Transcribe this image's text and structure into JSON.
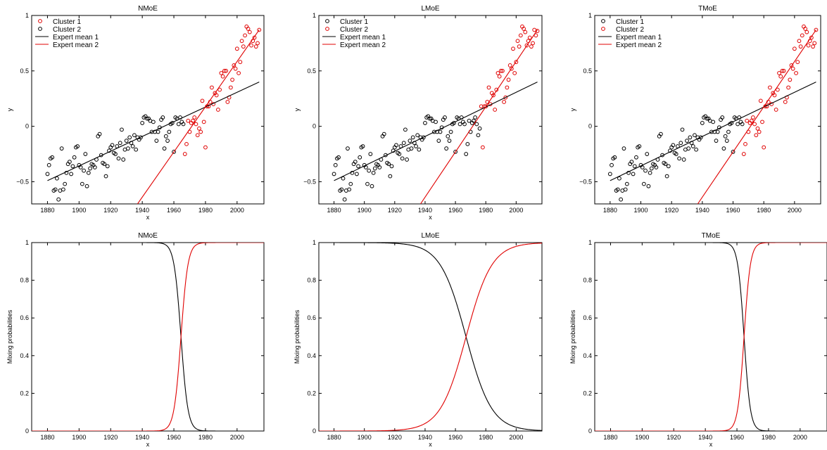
{
  "colors": {
    "cluster_black": "#000000",
    "cluster_red": "#e00000",
    "axes": "#000000",
    "background": "#ffffff"
  },
  "chart_data": [
    {
      "id": "top-left",
      "type": "scatter",
      "title": "NMoE",
      "xlabel": "x",
      "ylabel": "y",
      "xlim": [
        1870,
        2017
      ],
      "ylim": [
        -0.7,
        1.0
      ],
      "xticks": [
        1880,
        1900,
        1920,
        1940,
        1960,
        1980,
        2000
      ],
      "yticks": [
        -0.5,
        0,
        0.5,
        1
      ],
      "ytick_labels": [
        "−0.5",
        "0",
        "0.5",
        "1"
      ],
      "legend": {
        "placement": "top-left",
        "entries": [
          {
            "label": "Cluster 1",
            "kind": "marker",
            "color": "#e00000"
          },
          {
            "label": "Cluster 2",
            "kind": "marker",
            "color": "#000000"
          },
          {
            "label": "Expert mean 1",
            "kind": "line",
            "color": "#000000"
          },
          {
            "label": "Expert mean 2",
            "kind": "line",
            "color": "#e00000"
          }
        ]
      },
      "series": [
        {
          "kind": "points",
          "color": "#000000",
          "x_start": 1880,
          "x_end": 1966,
          "y": [
            -0.43,
            -0.35,
            -0.29,
            -0.28,
            -0.58,
            -0.57,
            -0.47,
            -0.66,
            -0.58,
            -0.2,
            -0.57,
            -0.52,
            -0.42,
            -0.34,
            -0.32,
            -0.43,
            -0.36,
            -0.28,
            -0.19,
            -0.18,
            -0.35,
            -0.37,
            -0.52,
            -0.4,
            -0.25,
            -0.54,
            -0.42,
            -0.38,
            -0.34,
            -0.35,
            -0.37,
            -0.3,
            -0.09,
            -0.07,
            -0.26,
            -0.33,
            -0.34,
            -0.45,
            -0.36,
            -0.22,
            -0.19,
            -0.17,
            -0.24,
            -0.25,
            -0.18,
            -0.29,
            -0.15,
            -0.03,
            -0.3,
            -0.21,
            -0.13,
            -0.2,
            -0.1,
            -0.15,
            -0.18,
            -0.08,
            -0.21,
            -0.1,
            -0.12,
            -0.1,
            0.03,
            0.08,
            0.09,
            0.07,
            0.07,
            0.05,
            -0.05,
            0.04,
            -0.05,
            -0.13,
            -0.05,
            -0.01,
            0.06,
            0.08,
            -0.2,
            -0.09,
            -0.13,
            -0.05,
            0.02,
            0.03,
            -0.23,
            0.08,
            0.07,
            0.02,
            0.08,
            0.04,
            0.02
          ]
        },
        {
          "kind": "points",
          "color": "#e00000",
          "x_start": 1967,
          "x_end": 2014,
          "y": [
            -0.25,
            -0.16,
            0.05,
            -0.05,
            0.03,
            0.05,
            0.08,
            0.02,
            -0.08,
            -0.02,
            -0.05,
            0.23,
            0.04,
            -0.19,
            0.18,
            0.18,
            0.22,
            0.35,
            0.2,
            0.3,
            0.28,
            0.15,
            0.33,
            0.48,
            0.45,
            0.5,
            0.5,
            0.22,
            0.26,
            0.35,
            0.42,
            0.55,
            0.52,
            0.7,
            0.48,
            0.58,
            0.77,
            0.72,
            0.82,
            0.9,
            0.88,
            0.85,
            0.73,
            0.77,
            0.8,
            0.72,
            0.75,
            0.87
          ]
        },
        {
          "kind": "line",
          "color": "#000000",
          "x": [
            1880,
            2014
          ],
          "y": [
            -0.49,
            0.4
          ]
        },
        {
          "kind": "line",
          "color": "#e00000",
          "x": [
            1937,
            2014
          ],
          "y": [
            -0.7,
            0.87
          ]
        }
      ]
    },
    {
      "id": "top-middle",
      "type": "scatter",
      "title": "LMoE",
      "xlabel": "x",
      "ylabel": "y",
      "xlim": [
        1870,
        2017
      ],
      "ylim": [
        -0.7,
        1.0
      ],
      "xticks": [
        1880,
        1900,
        1920,
        1940,
        1960,
        1980,
        2000
      ],
      "yticks": [
        -0.5,
        0,
        0.5,
        1
      ],
      "ytick_labels": [
        "−0.5",
        "0",
        "0.5",
        "1"
      ],
      "legend": {
        "placement": "top-left",
        "entries": [
          {
            "label": "Cluster 1",
            "kind": "marker",
            "color": "#000000"
          },
          {
            "label": "Cluster 2",
            "kind": "marker",
            "color": "#e00000"
          },
          {
            "label": "Expert mean 1",
            "kind": "line",
            "color": "#000000"
          },
          {
            "label": "Expert mean 2",
            "kind": "line",
            "color": "#e00000"
          }
        ]
      },
      "series": [
        {
          "kind": "points",
          "color": "#000000",
          "x_start": 1880,
          "x_end": 1976,
          "y": [
            -0.43,
            -0.35,
            -0.29,
            -0.28,
            -0.58,
            -0.57,
            -0.47,
            -0.66,
            -0.58,
            -0.2,
            -0.57,
            -0.52,
            -0.42,
            -0.34,
            -0.32,
            -0.43,
            -0.36,
            -0.28,
            -0.19,
            -0.18,
            -0.35,
            -0.37,
            -0.52,
            -0.4,
            -0.25,
            -0.54,
            -0.42,
            -0.38,
            -0.34,
            -0.35,
            -0.37,
            -0.3,
            -0.09,
            -0.07,
            -0.26,
            -0.33,
            -0.34,
            -0.45,
            -0.36,
            -0.22,
            -0.19,
            -0.17,
            -0.24,
            -0.25,
            -0.18,
            -0.29,
            -0.15,
            -0.03,
            -0.3,
            -0.21,
            -0.13,
            -0.2,
            -0.1,
            -0.15,
            -0.18,
            -0.08,
            -0.21,
            -0.1,
            -0.12,
            -0.1,
            0.03,
            0.08,
            0.09,
            0.07,
            0.07,
            0.05,
            -0.05,
            0.04,
            -0.05,
            -0.13,
            -0.05,
            -0.01,
            0.06,
            0.08,
            -0.2,
            -0.09,
            -0.13,
            -0.05,
            0.02,
            0.03,
            -0.23,
            0.08,
            0.07,
            0.02,
            0.08,
            0.04,
            0.02,
            -0.25,
            -0.16,
            0.05,
            -0.05,
            0.03,
            0.05,
            0.08,
            0.02,
            -0.08,
            -0.02
          ]
        },
        {
          "kind": "points",
          "color": "#e00000",
          "x_start": 1977,
          "x_end": 2014,
          "y": [
            0.18,
            -0.19,
            0.18,
            0.18,
            0.22,
            0.35,
            0.2,
            0.3,
            0.28,
            0.15,
            0.33,
            0.48,
            0.45,
            0.5,
            0.5,
            0.22,
            0.26,
            0.35,
            0.42,
            0.55,
            0.52,
            0.7,
            0.48,
            0.58,
            0.77,
            0.72,
            0.82,
            0.9,
            0.88,
            0.85,
            0.73,
            0.77,
            0.8,
            0.72,
            0.75,
            0.87,
            0.82,
            0.86
          ]
        },
        {
          "kind": "line",
          "color": "#000000",
          "x": [
            1880,
            2014
          ],
          "y": [
            -0.49,
            0.4
          ]
        },
        {
          "kind": "line",
          "color": "#e00000",
          "x": [
            1937,
            2014
          ],
          "y": [
            -0.7,
            0.87
          ]
        }
      ]
    },
    {
      "id": "top-right",
      "type": "scatter",
      "title": "TMoE",
      "xlabel": "",
      "ylabel": "y",
      "xlim": [
        1870,
        2017
      ],
      "ylim": [
        -0.7,
        1.0
      ],
      "xticks": [
        1880,
        1900,
        1920,
        1940,
        1960,
        1980,
        2000
      ],
      "yticks": [
        -0.5,
        0,
        0.5,
        1
      ],
      "ytick_labels": [
        "−0.5",
        "0",
        "0.5",
        "1"
      ],
      "legend": {
        "placement": "top-left",
        "entries": [
          {
            "label": "Cluster 1",
            "kind": "marker",
            "color": "#000000"
          },
          {
            "label": "Cluster 2",
            "kind": "marker",
            "color": "#e00000"
          },
          {
            "label": "Expert mean 1",
            "kind": "line",
            "color": "#000000"
          },
          {
            "label": "Expert mean 2",
            "kind": "line",
            "color": "#e00000"
          }
        ]
      },
      "series": [
        {
          "kind": "points",
          "color": "#000000",
          "x_start": 1880,
          "x_end": 1966,
          "y": [
            -0.43,
            -0.35,
            -0.29,
            -0.28,
            -0.58,
            -0.57,
            -0.47,
            -0.66,
            -0.58,
            -0.2,
            -0.57,
            -0.52,
            -0.42,
            -0.34,
            -0.32,
            -0.43,
            -0.36,
            -0.28,
            -0.19,
            -0.18,
            -0.35,
            -0.37,
            -0.52,
            -0.4,
            -0.25,
            -0.54,
            -0.42,
            -0.38,
            -0.34,
            -0.35,
            -0.37,
            -0.3,
            -0.09,
            -0.07,
            -0.26,
            -0.33,
            -0.34,
            -0.45,
            -0.36,
            -0.22,
            -0.19,
            -0.17,
            -0.24,
            -0.25,
            -0.18,
            -0.29,
            -0.15,
            -0.03,
            -0.3,
            -0.21,
            -0.13,
            -0.2,
            -0.1,
            -0.15,
            -0.18,
            -0.08,
            -0.21,
            -0.1,
            -0.12,
            -0.1,
            0.03,
            0.08,
            0.09,
            0.07,
            0.07,
            0.05,
            -0.05,
            0.04,
            -0.05,
            -0.13,
            -0.05,
            -0.01,
            0.06,
            0.08,
            -0.2,
            -0.09,
            -0.13,
            -0.05,
            0.02,
            0.03,
            -0.23,
            0.08,
            0.07,
            0.02,
            0.08,
            0.04,
            0.02
          ]
        },
        {
          "kind": "points",
          "color": "#e00000",
          "x_start": 1967,
          "x_end": 2014,
          "y": [
            -0.25,
            -0.16,
            0.05,
            -0.05,
            0.03,
            0.05,
            0.08,
            0.02,
            -0.08,
            -0.02,
            -0.05,
            0.23,
            0.04,
            -0.19,
            0.18,
            0.18,
            0.22,
            0.35,
            0.2,
            0.3,
            0.28,
            0.15,
            0.33,
            0.48,
            0.45,
            0.5,
            0.5,
            0.22,
            0.26,
            0.35,
            0.42,
            0.55,
            0.52,
            0.7,
            0.48,
            0.58,
            0.77,
            0.72,
            0.82,
            0.9,
            0.88,
            0.85,
            0.73,
            0.77,
            0.8,
            0.72,
            0.75,
            0.87
          ]
        },
        {
          "kind": "line",
          "color": "#000000",
          "x": [
            1880,
            2014
          ],
          "y": [
            -0.49,
            0.4
          ]
        },
        {
          "kind": "line",
          "color": "#e00000",
          "x": [
            1937,
            2014
          ],
          "y": [
            -0.7,
            0.87
          ]
        }
      ]
    },
    {
      "id": "bottom-left",
      "type": "line",
      "title": "NMoE",
      "xlabel": "x",
      "ylabel": "Mixing probabilities",
      "xlim": [
        1870,
        2017
      ],
      "ylim": [
        0,
        1
      ],
      "xticks": [
        1880,
        1900,
        1920,
        1940,
        1960,
        1980,
        2000
      ],
      "yticks": [
        0,
        0.2,
        0.4,
        0.6,
        0.8,
        1
      ],
      "ytick_labels": [
        "0",
        "0.2",
        "0.4",
        "0.6",
        "0.8",
        "1"
      ],
      "series": [
        {
          "kind": "logistic",
          "color": "#000000",
          "midpoint": 1964.5,
          "scale": 2.2,
          "decreasing": true
        },
        {
          "kind": "logistic",
          "color": "#e00000",
          "midpoint": 1964.5,
          "scale": 2.2,
          "decreasing": false
        }
      ]
    },
    {
      "id": "bottom-middle",
      "type": "line",
      "title": "LMoE",
      "xlabel": "x",
      "ylabel": "Mixing probabilities",
      "xlim": [
        1870,
        2017
      ],
      "ylim": [
        0,
        1
      ],
      "xticks": [
        1880,
        1900,
        1920,
        1940,
        1960,
        1980,
        2000
      ],
      "yticks": [
        0,
        0.2,
        0.4,
        0.6,
        0.8,
        1
      ],
      "ytick_labels": [
        "0",
        "0.2",
        "0.4",
        "0.6",
        "0.8",
        "1"
      ],
      "series": [
        {
          "kind": "logistic",
          "color": "#000000",
          "midpoint": 1967,
          "scale": 8.5,
          "decreasing": true
        },
        {
          "kind": "logistic",
          "color": "#e00000",
          "midpoint": 1967,
          "scale": 8.5,
          "decreasing": false
        }
      ]
    },
    {
      "id": "bottom-right",
      "type": "line",
      "title": "TMoE",
      "xlabel": "x",
      "ylabel": "Mixing probabilities",
      "xlim": [
        1870,
        2017
      ],
      "ylim": [
        0,
        1
      ],
      "xticks": [
        1880,
        1900,
        1920,
        1940,
        1960,
        1980,
        2000
      ],
      "yticks": [
        0,
        0.2,
        0.4,
        0.6,
        0.8,
        1
      ],
      "ytick_labels": [
        "0",
        "0.2",
        "0.4",
        "0.6",
        "0.8",
        "1"
      ],
      "series": [
        {
          "kind": "logistic",
          "color": "#000000",
          "midpoint": 1964.5,
          "scale": 2.0,
          "decreasing": true
        },
        {
          "kind": "logistic",
          "color": "#e00000",
          "midpoint": 1964.5,
          "scale": 2.0,
          "decreasing": false
        }
      ]
    }
  ]
}
